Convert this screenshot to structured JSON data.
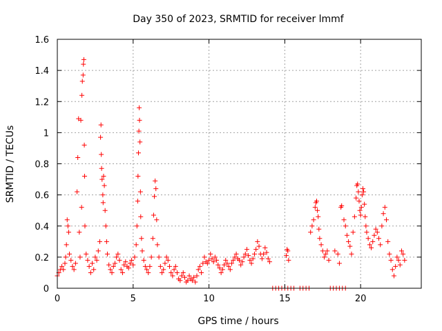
{
  "chart_data": {
    "type": "scatter",
    "title": "Day 350 of 2023, SRMTID for receiver lmmf",
    "xlabel": "GPS time / hours",
    "ylabel": "SRMTID / TECUs",
    "xlim": [
      0,
      24
    ],
    "ylim": [
      0,
      1.6
    ],
    "xticks": [
      "0",
      "5",
      "10",
      "15",
      "20"
    ],
    "yticks": [
      "0",
      "0.2",
      "0.4",
      "0.6",
      "0.8",
      "1",
      "1.2",
      "1.4",
      "1.6"
    ],
    "grid": true,
    "marker": "+",
    "color": "#ff0000",
    "series": [
      {
        "name": "SRMTID",
        "points": [
          [
            0.0,
            0.08
          ],
          [
            0.1,
            0.1
          ],
          [
            0.2,
            0.12
          ],
          [
            0.3,
            0.14
          ],
          [
            0.4,
            0.12
          ],
          [
            0.5,
            0.16
          ],
          [
            0.55,
            0.2
          ],
          [
            0.6,
            0.28
          ],
          [
            0.65,
            0.44
          ],
          [
            0.7,
            0.4
          ],
          [
            0.75,
            0.36
          ],
          [
            0.8,
            0.22
          ],
          [
            0.9,
            0.18
          ],
          [
            1.0,
            0.14
          ],
          [
            1.1,
            0.12
          ],
          [
            1.2,
            0.16
          ],
          [
            1.3,
            0.62
          ],
          [
            1.35,
            0.84
          ],
          [
            1.4,
            1.09
          ],
          [
            1.45,
            0.36
          ],
          [
            1.5,
            0.2
          ],
          [
            1.55,
            1.08
          ],
          [
            1.6,
            0.52
          ],
          [
            1.62,
            1.24
          ],
          [
            1.65,
            1.33
          ],
          [
            1.7,
            1.37
          ],
          [
            1.72,
            1.44
          ],
          [
            1.75,
            1.47
          ],
          [
            1.78,
            0.92
          ],
          [
            1.8,
            0.72
          ],
          [
            1.82,
            0.4
          ],
          [
            1.9,
            0.22
          ],
          [
            2.0,
            0.18
          ],
          [
            2.1,
            0.14
          ],
          [
            2.2,
            0.1
          ],
          [
            2.3,
            0.16
          ],
          [
            2.4,
            0.12
          ],
          [
            2.5,
            0.2
          ],
          [
            2.6,
            0.18
          ],
          [
            2.7,
            0.24
          ],
          [
            2.8,
            0.3
          ],
          [
            2.85,
            0.97
          ],
          [
            2.88,
            1.05
          ],
          [
            2.9,
            0.86
          ],
          [
            2.92,
            0.77
          ],
          [
            2.95,
            0.7
          ],
          [
            3.0,
            0.6
          ],
          [
            3.02,
            0.55
          ],
          [
            3.05,
            0.72
          ],
          [
            3.1,
            0.66
          ],
          [
            3.15,
            0.5
          ],
          [
            3.2,
            0.4
          ],
          [
            3.25,
            0.3
          ],
          [
            3.3,
            0.22
          ],
          [
            3.4,
            0.15
          ],
          [
            3.5,
            0.12
          ],
          [
            3.6,
            0.1
          ],
          [
            3.7,
            0.14
          ],
          [
            3.8,
            0.16
          ],
          [
            3.9,
            0.2
          ],
          [
            4.0,
            0.22
          ],
          [
            4.1,
            0.18
          ],
          [
            4.2,
            0.12
          ],
          [
            4.3,
            0.1
          ],
          [
            4.4,
            0.15
          ],
          [
            4.5,
            0.17
          ],
          [
            4.6,
            0.14
          ],
          [
            4.7,
            0.13
          ],
          [
            4.8,
            0.16
          ],
          [
            4.9,
            0.18
          ],
          [
            5.0,
            0.15
          ],
          [
            5.1,
            0.2
          ],
          [
            5.2,
            0.28
          ],
          [
            5.25,
            0.4
          ],
          [
            5.3,
            0.56
          ],
          [
            5.32,
            0.72
          ],
          [
            5.35,
            0.87
          ],
          [
            5.38,
            1.01
          ],
          [
            5.4,
            1.16
          ],
          [
            5.42,
            1.08
          ],
          [
            5.45,
            0.94
          ],
          [
            5.48,
            0.62
          ],
          [
            5.5,
            0.46
          ],
          [
            5.55,
            0.32
          ],
          [
            5.6,
            0.24
          ],
          [
            5.7,
            0.18
          ],
          [
            5.8,
            0.14
          ],
          [
            5.9,
            0.12
          ],
          [
            6.0,
            0.1
          ],
          [
            6.1,
            0.14
          ],
          [
            6.2,
            0.2
          ],
          [
            6.3,
            0.32
          ],
          [
            6.35,
            0.47
          ],
          [
            6.4,
            0.59
          ],
          [
            6.45,
            0.69
          ],
          [
            6.5,
            0.64
          ],
          [
            6.55,
            0.44
          ],
          [
            6.6,
            0.28
          ],
          [
            6.7,
            0.2
          ],
          [
            6.8,
            0.14
          ],
          [
            6.9,
            0.1
          ],
          [
            7.0,
            0.12
          ],
          [
            7.1,
            0.16
          ],
          [
            7.2,
            0.2
          ],
          [
            7.3,
            0.18
          ],
          [
            7.4,
            0.14
          ],
          [
            7.5,
            0.1
          ],
          [
            7.6,
            0.08
          ],
          [
            7.7,
            0.12
          ],
          [
            7.8,
            0.14
          ],
          [
            7.9,
            0.1
          ],
          [
            8.0,
            0.06
          ],
          [
            8.1,
            0.05
          ],
          [
            8.2,
            0.08
          ],
          [
            8.3,
            0.1
          ],
          [
            8.4,
            0.07
          ],
          [
            8.5,
            0.04
          ],
          [
            8.6,
            0.05
          ],
          [
            8.7,
            0.08
          ],
          [
            8.8,
            0.06
          ],
          [
            8.9,
            0.05
          ],
          [
            9.0,
            0.07
          ],
          [
            9.1,
            0.04
          ],
          [
            9.2,
            0.08
          ],
          [
            9.3,
            0.12
          ],
          [
            9.4,
            0.14
          ],
          [
            9.5,
            0.1
          ],
          [
            9.6,
            0.16
          ],
          [
            9.7,
            0.2
          ],
          [
            9.8,
            0.17
          ],
          [
            9.9,
            0.16
          ],
          [
            10.0,
            0.18
          ],
          [
            10.1,
            0.22
          ],
          [
            10.2,
            0.19
          ],
          [
            10.3,
            0.17
          ],
          [
            10.4,
            0.2
          ],
          [
            10.5,
            0.18
          ],
          [
            10.6,
            0.15
          ],
          [
            10.7,
            0.13
          ],
          [
            10.8,
            0.1
          ],
          [
            10.9,
            0.12
          ],
          [
            11.0,
            0.15
          ],
          [
            11.1,
            0.18
          ],
          [
            11.2,
            0.16
          ],
          [
            11.3,
            0.14
          ],
          [
            11.4,
            0.12
          ],
          [
            11.5,
            0.16
          ],
          [
            11.6,
            0.18
          ],
          [
            11.7,
            0.2
          ],
          [
            11.8,
            0.22
          ],
          [
            11.9,
            0.19
          ],
          [
            12.0,
            0.18
          ],
          [
            12.1,
            0.15
          ],
          [
            12.2,
            0.17
          ],
          [
            12.3,
            0.2
          ],
          [
            12.4,
            0.22
          ],
          [
            12.5,
            0.25
          ],
          [
            12.6,
            0.21
          ],
          [
            12.7,
            0.18
          ],
          [
            12.8,
            0.16
          ],
          [
            12.9,
            0.19
          ],
          [
            13.0,
            0.22
          ],
          [
            13.1,
            0.25
          ],
          [
            13.2,
            0.3
          ],
          [
            13.3,
            0.27
          ],
          [
            13.4,
            0.22
          ],
          [
            13.5,
            0.19
          ],
          [
            13.6,
            0.22
          ],
          [
            13.7,
            0.26
          ],
          [
            13.8,
            0.23
          ],
          [
            13.9,
            0.19
          ],
          [
            14.0,
            0.17
          ],
          [
            15.1,
            0.21
          ],
          [
            15.15,
            0.25
          ],
          [
            15.2,
            0.24
          ],
          [
            15.25,
            0.18
          ],
          [
            16.7,
            0.36
          ],
          [
            16.8,
            0.4
          ],
          [
            16.9,
            0.44
          ],
          [
            17.0,
            0.52
          ],
          [
            17.05,
            0.55
          ],
          [
            17.1,
            0.56
          ],
          [
            17.15,
            0.5
          ],
          [
            17.2,
            0.46
          ],
          [
            17.25,
            0.38
          ],
          [
            17.3,
            0.32
          ],
          [
            17.4,
            0.28
          ],
          [
            17.5,
            0.24
          ],
          [
            17.6,
            0.2
          ],
          [
            17.7,
            0.22
          ],
          [
            17.8,
            0.24
          ],
          [
            17.9,
            0.18
          ],
          [
            18.3,
            0.24
          ],
          [
            18.5,
            0.22
          ],
          [
            18.6,
            0.16
          ],
          [
            18.7,
            0.52
          ],
          [
            18.75,
            0.53
          ],
          [
            18.9,
            0.44
          ],
          [
            19.0,
            0.4
          ],
          [
            19.1,
            0.34
          ],
          [
            19.2,
            0.3
          ],
          [
            19.3,
            0.27
          ],
          [
            19.4,
            0.22
          ],
          [
            19.5,
            0.36
          ],
          [
            19.6,
            0.46
          ],
          [
            19.7,
            0.58
          ],
          [
            19.75,
            0.66
          ],
          [
            19.8,
            0.67
          ],
          [
            19.85,
            0.62
          ],
          [
            19.9,
            0.56
          ],
          [
            19.95,
            0.5
          ],
          [
            20.0,
            0.47
          ],
          [
            20.05,
            0.52
          ],
          [
            20.1,
            0.6
          ],
          [
            20.15,
            0.64
          ],
          [
            20.2,
            0.62
          ],
          [
            20.25,
            0.54
          ],
          [
            20.3,
            0.46
          ],
          [
            20.35,
            0.4
          ],
          [
            20.4,
            0.36
          ],
          [
            20.5,
            0.32
          ],
          [
            20.6,
            0.28
          ],
          [
            20.7,
            0.26
          ],
          [
            20.8,
            0.3
          ],
          [
            20.9,
            0.34
          ],
          [
            21.0,
            0.38
          ],
          [
            21.1,
            0.36
          ],
          [
            21.2,
            0.32
          ],
          [
            21.3,
            0.28
          ],
          [
            21.4,
            0.4
          ],
          [
            21.5,
            0.48
          ],
          [
            21.6,
            0.52
          ],
          [
            21.7,
            0.44
          ],
          [
            21.8,
            0.3
          ],
          [
            21.9,
            0.22
          ],
          [
            22.0,
            0.18
          ],
          [
            22.1,
            0.12
          ],
          [
            22.2,
            0.08
          ],
          [
            22.3,
            0.14
          ],
          [
            22.4,
            0.2
          ],
          [
            22.5,
            0.18
          ],
          [
            22.6,
            0.15
          ],
          [
            22.7,
            0.24
          ],
          [
            22.8,
            0.22
          ],
          [
            22.9,
            0.18
          ],
          [
            14.2,
            0.0
          ],
          [
            14.4,
            0.0
          ],
          [
            14.6,
            0.0
          ],
          [
            14.8,
            0.0
          ],
          [
            15.0,
            0.0
          ],
          [
            15.2,
            0.0
          ],
          [
            15.4,
            0.0
          ],
          [
            15.6,
            0.0
          ],
          [
            16.0,
            0.0
          ],
          [
            16.2,
            0.0
          ],
          [
            16.4,
            0.0
          ],
          [
            16.6,
            0.0
          ],
          [
            18.0,
            0.0
          ],
          [
            18.2,
            0.0
          ],
          [
            18.4,
            0.0
          ],
          [
            18.6,
            0.0
          ],
          [
            18.8,
            0.0
          ],
          [
            19.0,
            0.0
          ]
        ]
      }
    ]
  }
}
